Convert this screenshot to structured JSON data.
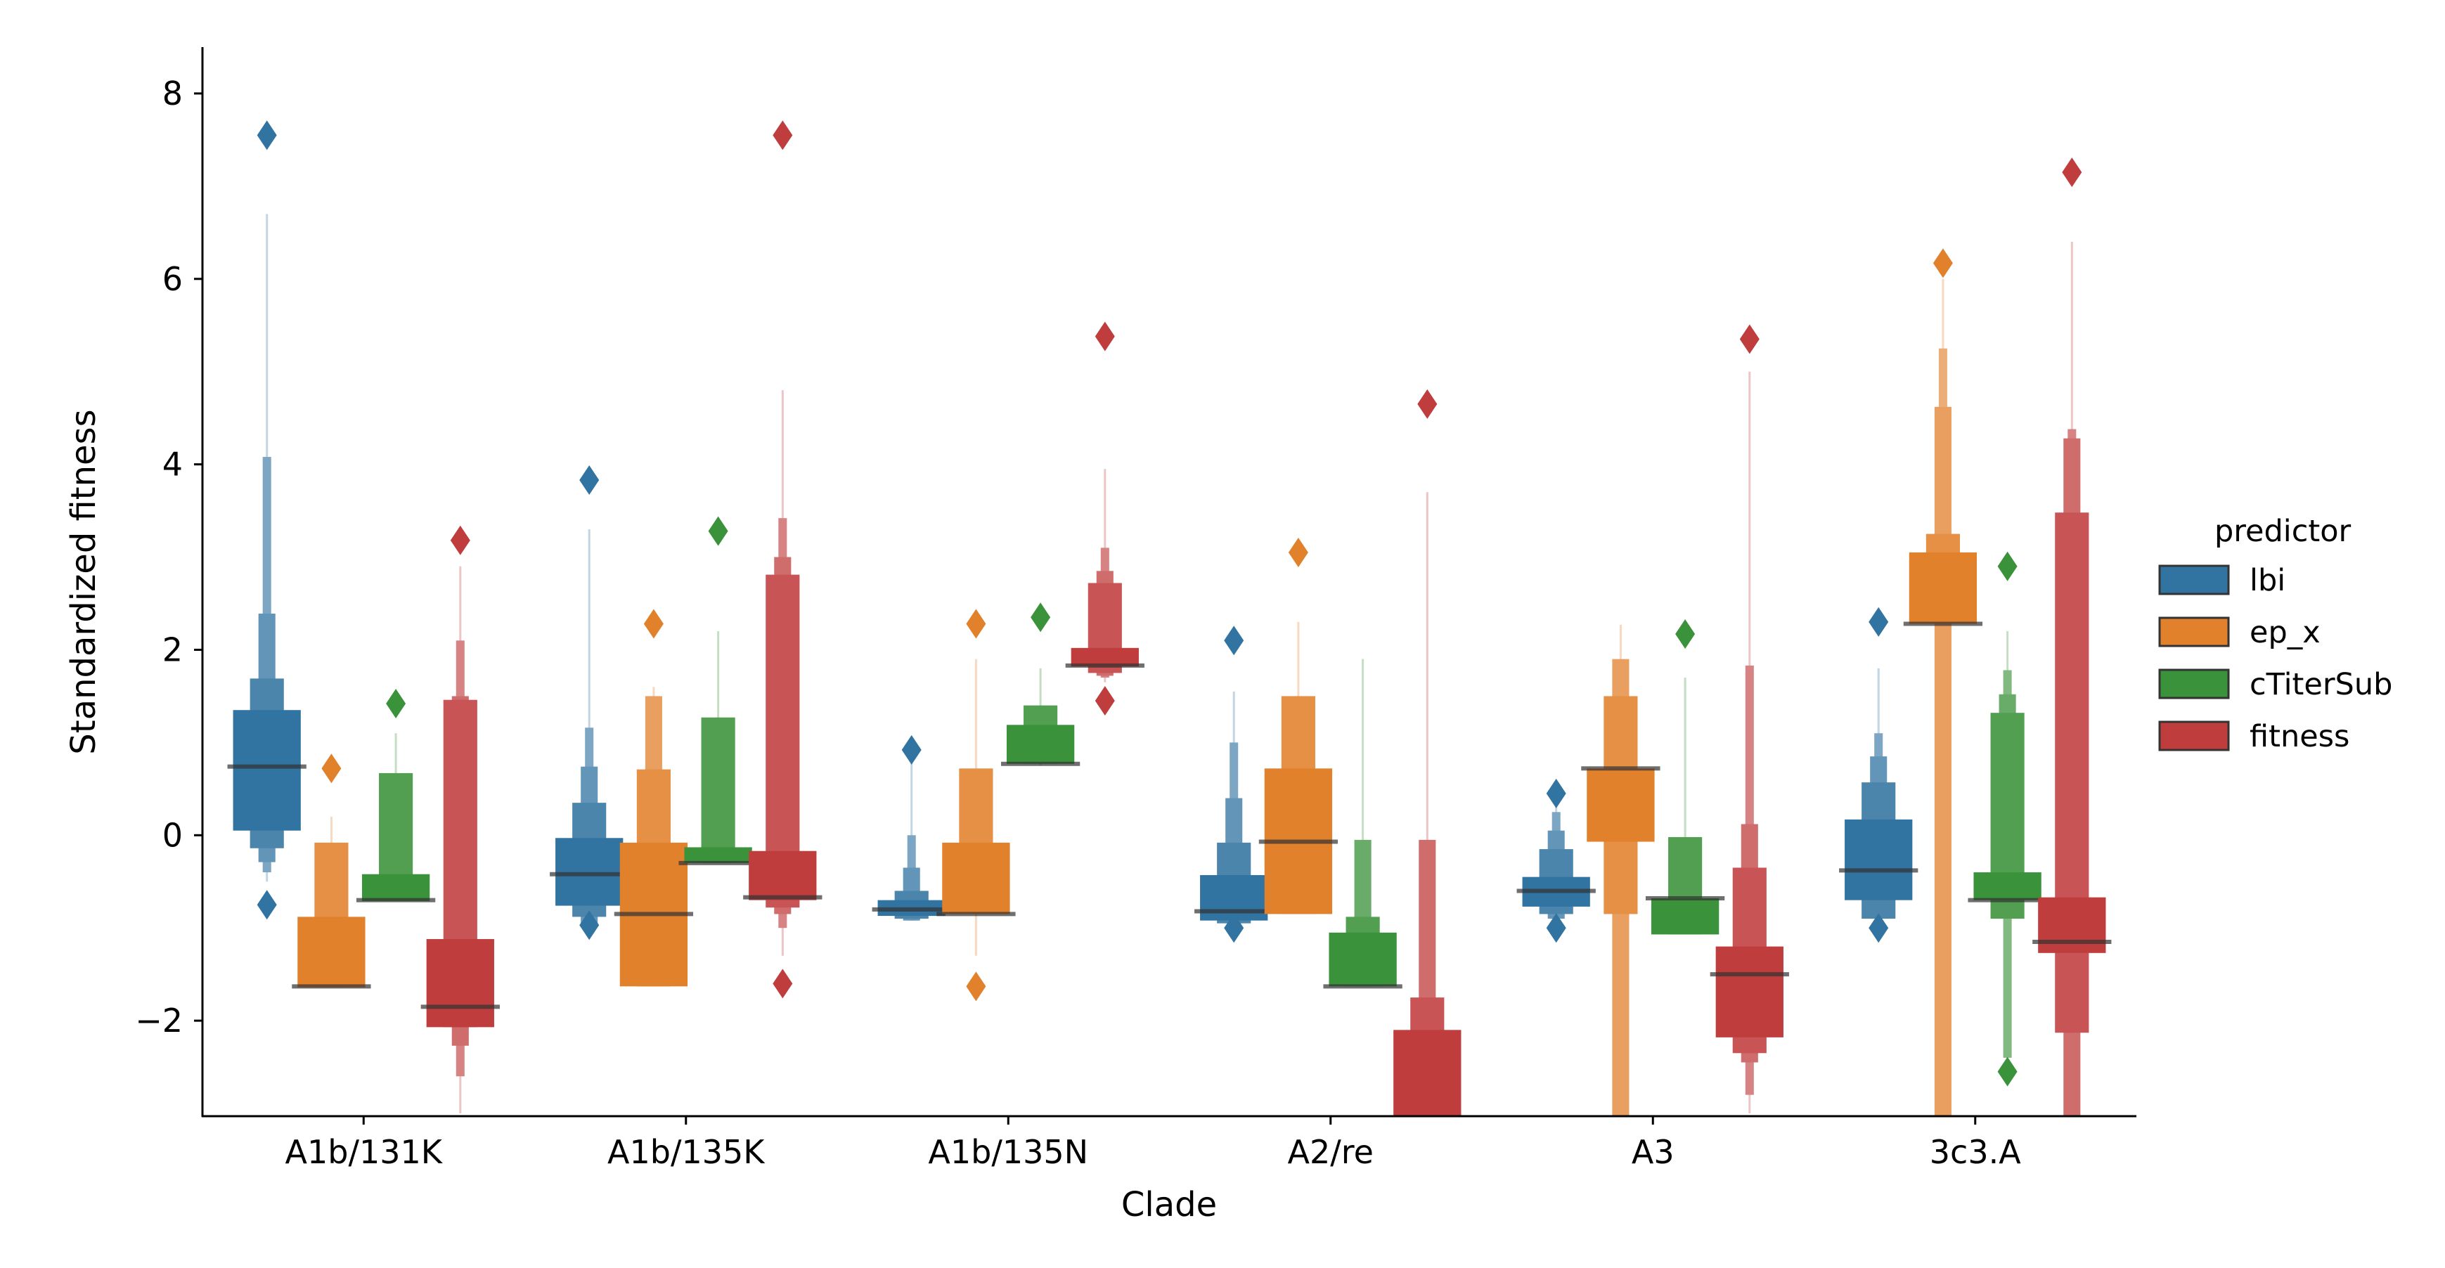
{
  "chart_data": {
    "type": "boxen",
    "title": "",
    "xlabel": "Clade",
    "ylabel": "Standardized fitness",
    "ylim": [
      -3.03,
      8.5
    ],
    "yticks": [
      -2,
      0,
      2,
      4,
      6,
      8
    ],
    "ytick_labels": [
      "−2",
      "0",
      "2",
      "4",
      "6",
      "8"
    ],
    "grid": false,
    "legend": {
      "title": "predictor",
      "placement": "right"
    },
    "categories": [
      "A1b/131K",
      "A1b/135K",
      "A1b/135N",
      "A2/re",
      "A3",
      "3c3.A"
    ],
    "series": [
      {
        "name": "lbi",
        "color": "#3274a1",
        "boxes": [
          {
            "median": 0.74,
            "levels": [
              [
                0.05,
                1.35
              ],
              [
                -0.14,
                1.69
              ],
              [
                -0.29,
                2.39
              ],
              [
                -0.4,
                4.08
              ]
            ],
            "tail": [
              -0.5,
              6.7
            ],
            "outliers": [
              7.55,
              -0.75
            ]
          },
          {
            "median": -0.42,
            "levels": [
              [
                -0.76,
                -0.03
              ],
              [
                -0.88,
                0.35
              ],
              [
                -0.95,
                0.74
              ],
              [
                -0.95,
                1.16
              ]
            ],
            "tail": [
              -0.95,
              3.3
            ],
            "outliers": [
              3.83,
              -0.97
            ]
          },
          {
            "median": -0.8,
            "levels": [
              [
                -0.87,
                -0.7
              ],
              [
                -0.9,
                -0.6
              ],
              [
                -0.92,
                -0.35
              ],
              [
                -0.92,
                0.0
              ]
            ],
            "tail": [
              -0.92,
              0.9
            ],
            "outliers": [
              0.92
            ]
          },
          {
            "median": -0.82,
            "levels": [
              [
                -0.92,
                -0.43
              ],
              [
                -0.95,
                -0.08
              ],
              [
                -0.95,
                0.4
              ],
              [
                -0.95,
                1.0
              ]
            ],
            "tail": [
              -0.95,
              1.55
            ],
            "outliers": [
              2.1,
              -1.0
            ]
          },
          {
            "median": -0.6,
            "levels": [
              [
                -0.77,
                -0.45
              ],
              [
                -0.85,
                -0.15
              ],
              [
                -0.9,
                0.05
              ],
              [
                -0.9,
                0.25
              ]
            ],
            "tail": [
              -0.9,
              0.4
            ],
            "outliers": [
              0.45,
              -1.0
            ]
          },
          {
            "median": -0.38,
            "levels": [
              [
                -0.7,
                0.17
              ],
              [
                -0.9,
                0.57
              ],
              [
                -0.9,
                0.85
              ],
              [
                -0.9,
                1.1
              ]
            ],
            "tail": [
              -0.9,
              1.8
            ],
            "outliers": [
              2.3,
              -1.0
            ]
          }
        ]
      },
      {
        "name": "ep_x",
        "color": "#e1812c",
        "boxes": [
          {
            "median": -1.63,
            "levels": [
              [
                -1.64,
                -0.88
              ],
              [
                -1.64,
                -0.08
              ]
            ],
            "tail": [
              -1.64,
              0.2
            ],
            "outliers": [
              0.72
            ]
          },
          {
            "median": -0.85,
            "levels": [
              [
                -1.63,
                -0.08
              ],
              [
                -1.63,
                0.71
              ],
              [
                -1.63,
                1.5
              ]
            ],
            "tail": [
              -1.63,
              1.6
            ],
            "outliers": [
              2.28
            ]
          },
          {
            "median": -0.85,
            "levels": [
              [
                -0.85,
                -0.08
              ],
              [
                -0.85,
                0.72
              ]
            ],
            "tail": [
              -1.3,
              1.9
            ],
            "outliers": [
              2.28,
              -1.63
            ]
          },
          {
            "median": -0.07,
            "levels": [
              [
                -0.85,
                0.72
              ],
              [
                -0.85,
                1.5
              ]
            ],
            "tail": [
              -0.85,
              2.3
            ],
            "outliers": [
              3.05
            ]
          },
          {
            "median": 0.72,
            "levels": [
              [
                -0.07,
                0.72
              ],
              [
                -0.85,
                1.5
              ],
              [
                -3.1,
                1.9
              ]
            ],
            "tail": [
              -3.1,
              2.27
            ],
            "outliers": []
          },
          {
            "median": 2.28,
            "levels": [
              [
                2.28,
                3.05
              ],
              [
                2.28,
                3.25
              ],
              [
                -3.1,
                4.62
              ],
              [
                -3.1,
                5.25
              ]
            ],
            "tail": [
              -3.1,
              6.0
            ],
            "outliers": [
              6.17
            ]
          }
        ]
      },
      {
        "name": "cTiterSub",
        "color": "#3a923a",
        "boxes": [
          {
            "median": -0.7,
            "levels": [
              [
                -0.71,
                -0.42
              ],
              [
                -0.71,
                0.67
              ]
            ],
            "tail": [
              -0.71,
              1.1
            ],
            "outliers": [
              1.42
            ]
          },
          {
            "median": -0.3,
            "levels": [
              [
                -0.3,
                -0.13
              ],
              [
                -0.3,
                1.27
              ]
            ],
            "tail": [
              -0.3,
              2.2
            ],
            "outliers": [
              3.28
            ]
          },
          {
            "median": 0.77,
            "levels": [
              [
                0.77,
                1.19
              ],
              [
                0.77,
                1.4
              ]
            ],
            "tail": [
              0.75,
              1.8
            ],
            "outliers": [
              2.35
            ]
          },
          {
            "median": -1.63,
            "levels": [
              [
                -1.63,
                -1.05
              ],
              [
                -1.63,
                -0.88
              ],
              [
                -1.63,
                -0.05
              ]
            ],
            "tail": [
              -1.63,
              1.9
            ],
            "outliers": []
          },
          {
            "median": -0.68,
            "levels": [
              [
                -1.07,
                -0.68
              ],
              [
                -1.07,
                -0.02
              ],
              [
                -1.07,
                -0.2
              ]
            ],
            "tail": [
              -1.07,
              1.7
            ],
            "outliers": [
              2.17
            ]
          },
          {
            "median": -0.7,
            "levels": [
              [
                -0.7,
                -0.4
              ],
              [
                -0.9,
                1.32
              ],
              [
                -0.9,
                1.52
              ],
              [
                -2.4,
                1.78
              ]
            ],
            "tail": [
              -2.4,
              2.2
            ],
            "outliers": [
              2.9,
              -2.55
            ]
          }
        ]
      },
      {
        "name": "fitness",
        "color": "#c03d3e",
        "boxes": [
          {
            "median": -1.85,
            "levels": [
              [
                -2.07,
                -1.12
              ],
              [
                -2.07,
                1.46
              ],
              [
                -2.27,
                1.5
              ],
              [
                -2.6,
                2.1
              ]
            ],
            "tail": [
              -3.0,
              2.9
            ],
            "outliers": [
              3.18
            ]
          },
          {
            "median": -0.67,
            "levels": [
              [
                -0.7,
                -0.17
              ],
              [
                -0.78,
                2.81
              ],
              [
                -0.85,
                3.0
              ],
              [
                -1.0,
                3.42
              ]
            ],
            "tail": [
              -1.3,
              4.8
            ],
            "outliers": [
              7.55,
              -1.6
            ]
          },
          {
            "median": 1.83,
            "levels": [
              [
                1.82,
                2.02
              ],
              [
                1.75,
                2.72
              ],
              [
                1.72,
                2.85
              ],
              [
                1.7,
                3.1
              ]
            ],
            "tail": [
              1.65,
              3.95
            ],
            "outliers": [
              5.38,
              1.45
            ]
          },
          {
            "median": -3.2,
            "levels": [
              [
                -3.1,
                -2.1
              ],
              [
                -3.1,
                -1.75
              ],
              [
                -3.1,
                -0.05
              ]
            ],
            "tail": [
              -3.1,
              3.7
            ],
            "outliers": [
              4.65
            ]
          },
          {
            "median": -1.5,
            "levels": [
              [
                -2.18,
                -1.2
              ],
              [
                -2.35,
                -0.35
              ],
              [
                -2.45,
                0.12
              ],
              [
                -2.8,
                1.83
              ]
            ],
            "tail": [
              -3.0,
              5.0
            ],
            "outliers": [
              5.35
            ]
          },
          {
            "median": -1.15,
            "levels": [
              [
                -1.27,
                -0.67
              ],
              [
                -2.13,
                3.48
              ],
              [
                -3.1,
                4.28
              ],
              [
                -3.1,
                4.38
              ]
            ],
            "tail": [
              -3.1,
              6.4
            ],
            "outliers": [
              7.15
            ]
          }
        ]
      }
    ]
  }
}
